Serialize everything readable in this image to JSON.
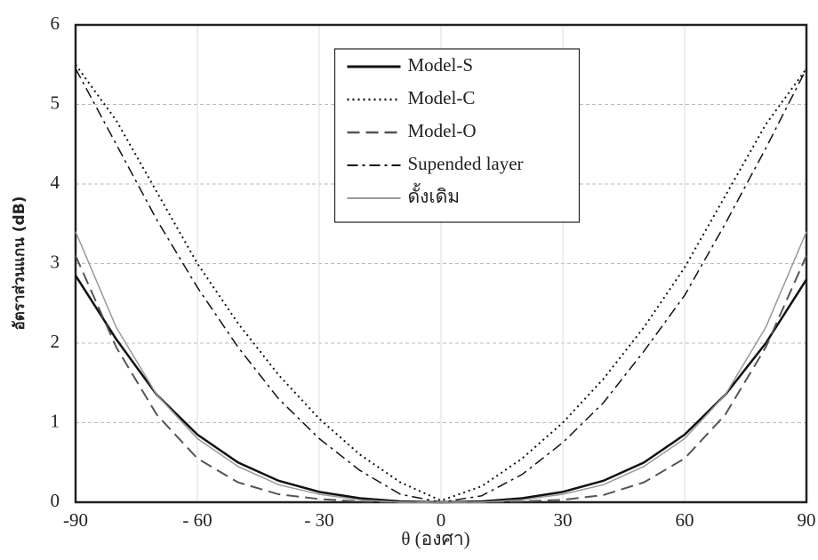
{
  "chart_data": {
    "type": "line",
    "xlabel": "θ (องศา)",
    "ylabel": "อัตราส่วนแกน (dB)",
    "x": [
      -90,
      -80,
      -70,
      -60,
      -50,
      -40,
      -30,
      -20,
      -10,
      0,
      10,
      20,
      30,
      40,
      50,
      60,
      70,
      80,
      90
    ],
    "xlim": [
      -90,
      90
    ],
    "xticks": [
      -90,
      {
        "value": -60,
        "label": "- 60"
      },
      {
        "value": -30,
        "label": "- 30"
      },
      0,
      30,
      60,
      90
    ],
    "ylim": [
      0,
      6
    ],
    "yticks": [
      0,
      1,
      2,
      3,
      4,
      5,
      6
    ],
    "grid": true,
    "legend": "upper center",
    "series": [
      {
        "name": "Model-S",
        "color": "#111111",
        "dash": "solid",
        "width": 2.5,
        "values": [
          2.85,
          2.05,
          1.35,
          0.85,
          0.5,
          0.27,
          0.13,
          0.05,
          0.01,
          0,
          0.01,
          0.05,
          0.13,
          0.27,
          0.5,
          0.85,
          1.35,
          2.0,
          2.8
        ]
      },
      {
        "name": "Model-C",
        "color": "#111111",
        "dash": "dotted",
        "width": 2,
        "values": [
          5.5,
          4.8,
          3.9,
          3.0,
          2.25,
          1.6,
          1.05,
          0.6,
          0.25,
          0.02,
          0.2,
          0.55,
          1.0,
          1.55,
          2.2,
          2.95,
          3.85,
          4.75,
          5.45
        ]
      },
      {
        "name": "Model-O",
        "color": "#555555",
        "dash": "dashed",
        "width": 2,
        "values": [
          3.1,
          1.95,
          1.1,
          0.55,
          0.25,
          0.1,
          0.04,
          0.01,
          0,
          0,
          0,
          0.01,
          0.03,
          0.09,
          0.25,
          0.55,
          1.1,
          1.95,
          3.1
        ]
      },
      {
        "name": "Supended layer",
        "color": "#111111",
        "dash": "dashdot",
        "width": 1.5,
        "values": [
          5.45,
          4.5,
          3.55,
          2.7,
          1.95,
          1.3,
          0.8,
          0.4,
          0.1,
          0,
          0.08,
          0.35,
          0.75,
          1.25,
          1.9,
          2.6,
          3.5,
          4.45,
          5.45
        ]
      },
      {
        "name": "ดั้งเดิม",
        "color": "#9a9a9a",
        "dash": "solid",
        "width": 1.5,
        "values": [
          3.4,
          2.2,
          1.35,
          0.8,
          0.45,
          0.22,
          0.1,
          0.03,
          0,
          0,
          0,
          0.03,
          0.1,
          0.22,
          0.45,
          0.8,
          1.35,
          2.2,
          3.4
        ]
      }
    ]
  }
}
